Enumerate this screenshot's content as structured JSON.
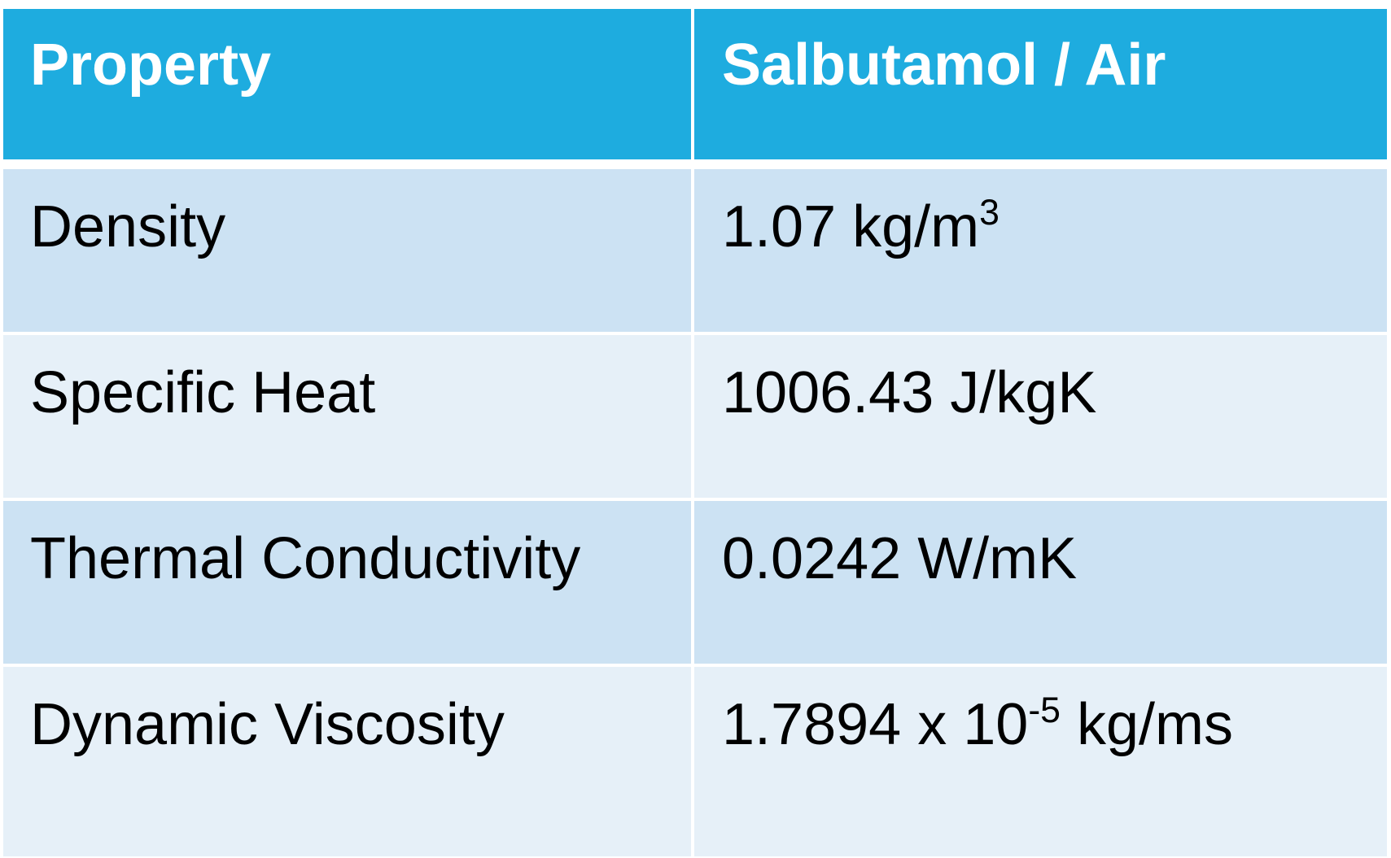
{
  "table": {
    "headers": [
      "Property",
      "Salbutamol / Air"
    ],
    "rows": [
      {
        "property": "Density",
        "value": {
          "base": "1.07 kg/m",
          "sup": "3",
          "tail": ""
        }
      },
      {
        "property": "Specific Heat",
        "value": {
          "base": "1006.43 J/kgK",
          "sup": "",
          "tail": ""
        }
      },
      {
        "property": "Thermal Conductivity",
        "value": {
          "base": "0.0242 W/mK",
          "sup": "",
          "tail": ""
        }
      },
      {
        "property": "Dynamic Viscosity",
        "value": {
          "base": "1.7894 x 10",
          "sup": "-5",
          "tail": " kg/ms"
        }
      }
    ]
  },
  "colors": {
    "header_background": "#1eacdf",
    "header_text": "#ffffff",
    "row_dark": "#cce2f3",
    "row_light": "#e6f0f8"
  }
}
